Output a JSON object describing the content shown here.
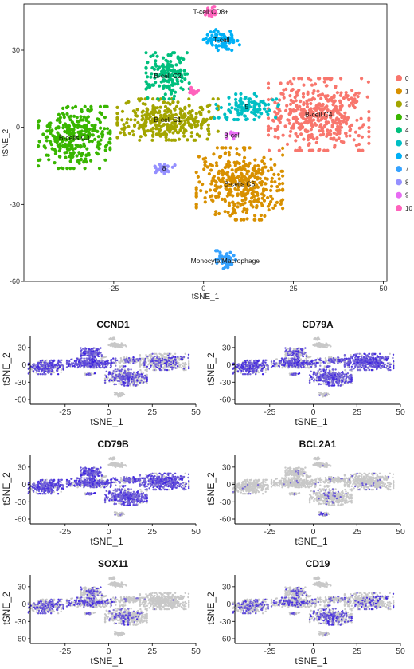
{
  "chart_data": [
    {
      "type": "scatter",
      "xlabel": "tSNE_1",
      "ylabel": "tSNE_2",
      "xlim": [
        -50,
        51
      ],
      "ylim": [
        -60,
        48
      ],
      "xticks": [
        "-25",
        "0",
        "25",
        "50"
      ],
      "xtick_values": [
        -25,
        0,
        25,
        50
      ],
      "yticks": [
        "30",
        "0",
        "-30",
        "-60"
      ],
      "ytick_values": [
        30,
        0,
        -30,
        -60
      ],
      "legend_position": "right",
      "legend": [
        {
          "label": "0",
          "color": "#F8766D"
        },
        {
          "label": "1",
          "color": "#D89000"
        },
        {
          "label": "2",
          "color": "#A3A500"
        },
        {
          "label": "3",
          "color": "#39B600"
        },
        {
          "label": "4",
          "color": "#00BF7D"
        },
        {
          "label": "5",
          "color": "#00BFC4"
        },
        {
          "label": "6",
          "color": "#00B0F6"
        },
        {
          "label": "7",
          "color": "#35A2FF"
        },
        {
          "label": "8",
          "color": "#9590FF"
        },
        {
          "label": "9",
          "color": "#E76BF3"
        },
        {
          "label": "10",
          "color": "#FF62BC"
        }
      ],
      "clusters": [
        {
          "id": 0,
          "label": "B-cell C4",
          "cx": 32,
          "cy": 5,
          "rx": 14,
          "ry": 14,
          "n": 420,
          "color": "#F8766D"
        },
        {
          "id": 1,
          "label": "B-cells C5",
          "cx": 10,
          "cy": -22,
          "rx": 12,
          "ry": 14,
          "n": 380,
          "color": "#D89000"
        },
        {
          "id": 2,
          "label": "B-cell C1",
          "cx": -10,
          "cy": 3,
          "rx": 14,
          "ry": 8,
          "n": 320,
          "color": "#A3A500"
        },
        {
          "id": 3,
          "label": "B-cells C3",
          "cx": -36,
          "cy": -4,
          "rx": 10,
          "ry": 12,
          "n": 300,
          "color": "#39B600"
        },
        {
          "id": 4,
          "label": "B-cell C2",
          "cx": -10,
          "cy": 20,
          "rx": 6,
          "ry": 9,
          "n": 160,
          "color": "#00BF7D"
        },
        {
          "id": 5,
          "label": "5",
          "cx": 12,
          "cy": 8,
          "rx": 9,
          "ry": 5,
          "n": 110,
          "color": "#00BFC4"
        },
        {
          "id": 6,
          "label": "T-cell",
          "cx": 5,
          "cy": 34,
          "rx": 5,
          "ry": 4,
          "n": 70,
          "color": "#00B0F6"
        },
        {
          "id": 7,
          "label": "Monocyte/Macrophage",
          "cx": 6,
          "cy": -52,
          "rx": 3,
          "ry": 4,
          "n": 45,
          "color": "#35A2FF"
        },
        {
          "id": 8,
          "label": "8",
          "cx": -11,
          "cy": -16,
          "rx": 3,
          "ry": 2,
          "n": 30,
          "color": "#9590FF"
        },
        {
          "id": 9,
          "label": "B-cell",
          "cx": 8,
          "cy": -3,
          "rx": 1.5,
          "ry": 1.5,
          "n": 14,
          "color": "#E76BF3"
        },
        {
          "id": 10,
          "label": "T-cell CD8+",
          "cx": 2,
          "cy": 45,
          "rx": 1.5,
          "ry": 2,
          "n": 20,
          "color": "#FF62BC"
        },
        {
          "id": 10,
          "label": "",
          "cx": -3,
          "cy": 14,
          "rx": 1.5,
          "ry": 1.5,
          "n": 14,
          "color": "#FF62BC"
        }
      ]
    },
    {
      "type": "scatter",
      "title": "CCND1",
      "xlabel": "tSNE_1",
      "ylabel": "tSNE_2",
      "xticks": [
        "-25",
        "0",
        "25",
        "50"
      ],
      "yticks": [
        "30",
        "0",
        "-30",
        "-60"
      ],
      "expression": {
        "0": 0.25,
        "1": 0.5,
        "2": 0.85,
        "3": 0.55,
        "4": 0.9,
        "5": 0.3,
        "6": 0.0,
        "7": 0.0,
        "8": 0.3,
        "9": 0.2,
        "10": 0.0
      }
    },
    {
      "type": "scatter",
      "title": "CD79A",
      "xlabel": "tSNE_1",
      "ylabel": "tSNE_2",
      "xticks": [
        "-25",
        "0",
        "25",
        "50"
      ],
      "yticks": [
        "30",
        "0",
        "-30",
        "-60"
      ],
      "expression": {
        "0": 0.85,
        "1": 0.7,
        "2": 0.55,
        "3": 0.55,
        "4": 0.5,
        "5": 0.55,
        "6": 0.0,
        "7": 0.05,
        "8": 0.5,
        "9": 0.5,
        "10": 0.0
      }
    },
    {
      "type": "scatter",
      "title": "CD79B",
      "xlabel": "tSNE_1",
      "ylabel": "tSNE_2",
      "xticks": [
        "-25",
        "0",
        "25",
        "50"
      ],
      "yticks": [
        "30",
        "0",
        "-30",
        "-60"
      ],
      "expression": {
        "0": 0.75,
        "1": 0.75,
        "2": 0.7,
        "3": 0.75,
        "4": 0.8,
        "5": 0.65,
        "6": 0.0,
        "7": 0.05,
        "8": 0.6,
        "9": 0.6,
        "10": 0.0
      }
    },
    {
      "type": "scatter",
      "title": "BCL2A1",
      "xlabel": "tSNE_1",
      "ylabel": "tSNE_2",
      "xticks": [
        "-25",
        "0",
        "25",
        "50"
      ],
      "yticks": [
        "30",
        "0",
        "-30",
        "-60"
      ],
      "expression": {
        "0": 0.06,
        "1": 0.08,
        "2": 0.03,
        "3": 0.03,
        "4": 0.03,
        "5": 0.08,
        "6": 0.02,
        "7": 0.25,
        "8": 0.05,
        "9": 0.05,
        "10": 0.0
      }
    },
    {
      "type": "scatter",
      "title": "SOX11",
      "xlabel": "tSNE_1",
      "ylabel": "tSNE_2",
      "xticks": [
        "-25",
        "0",
        "25",
        "50"
      ],
      "yticks": [
        "30",
        "0",
        "-30",
        "-60"
      ],
      "expression": {
        "0": 0.02,
        "1": 0.2,
        "2": 0.3,
        "3": 0.35,
        "4": 0.25,
        "5": 0.05,
        "6": 0.0,
        "7": 0.0,
        "8": 0.2,
        "9": 0.05,
        "10": 0.0
      }
    },
    {
      "type": "scatter",
      "title": "CD19",
      "xlabel": "tSNE_1",
      "ylabel": "tSNE_2",
      "xticks": [
        "-25",
        "0",
        "25",
        "50"
      ],
      "yticks": [
        "30",
        "0",
        "-30",
        "-60"
      ],
      "expression": {
        "0": 0.15,
        "1": 0.4,
        "2": 0.25,
        "3": 0.25,
        "4": 0.2,
        "5": 0.2,
        "6": 0.0,
        "7": 0.02,
        "8": 0.2,
        "9": 0.2,
        "10": 0.0
      }
    }
  ],
  "colors": {
    "expr_low": "#C8C8C8",
    "expr_high": "#3A1FE0",
    "panel_bg": "#FFFFFF",
    "axis": "#000000"
  }
}
